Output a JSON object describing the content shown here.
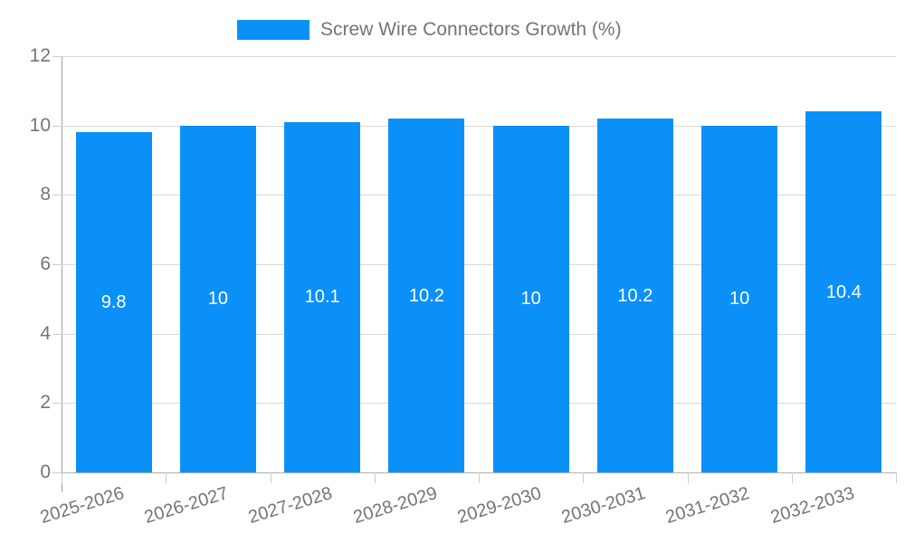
{
  "legend": {
    "label": "Screw Wire Connectors Growth (%)"
  },
  "chart_data": {
    "type": "bar",
    "title": "Screw Wire Connectors Growth (%)",
    "categories": [
      "2025-2026",
      "2026-2027",
      "2027-2028",
      "2028-2029",
      "2029-2030",
      "2030-2031",
      "2031-2032",
      "2032-2033"
    ],
    "values": [
      9.8,
      10,
      10.1,
      10.2,
      10,
      10.2,
      10,
      10.4
    ],
    "value_labels": [
      "9.8",
      "10",
      "10.1",
      "10.2",
      "10",
      "10.2",
      "10",
      "10.4"
    ],
    "xlabel": "",
    "ylabel": "",
    "ylim": [
      0,
      12
    ],
    "yticks": [
      0,
      2,
      4,
      6,
      8,
      10,
      12
    ],
    "grid": true,
    "legend_position": "top",
    "colors": {
      "bar": "#0b90f8",
      "bar_label": "#ffffff",
      "axis_text": "#757575",
      "grid_line": "#d9d9d9",
      "axis_line": "#a8a8a8",
      "tick_line": "#cccccc",
      "background": "#ffffff"
    }
  }
}
